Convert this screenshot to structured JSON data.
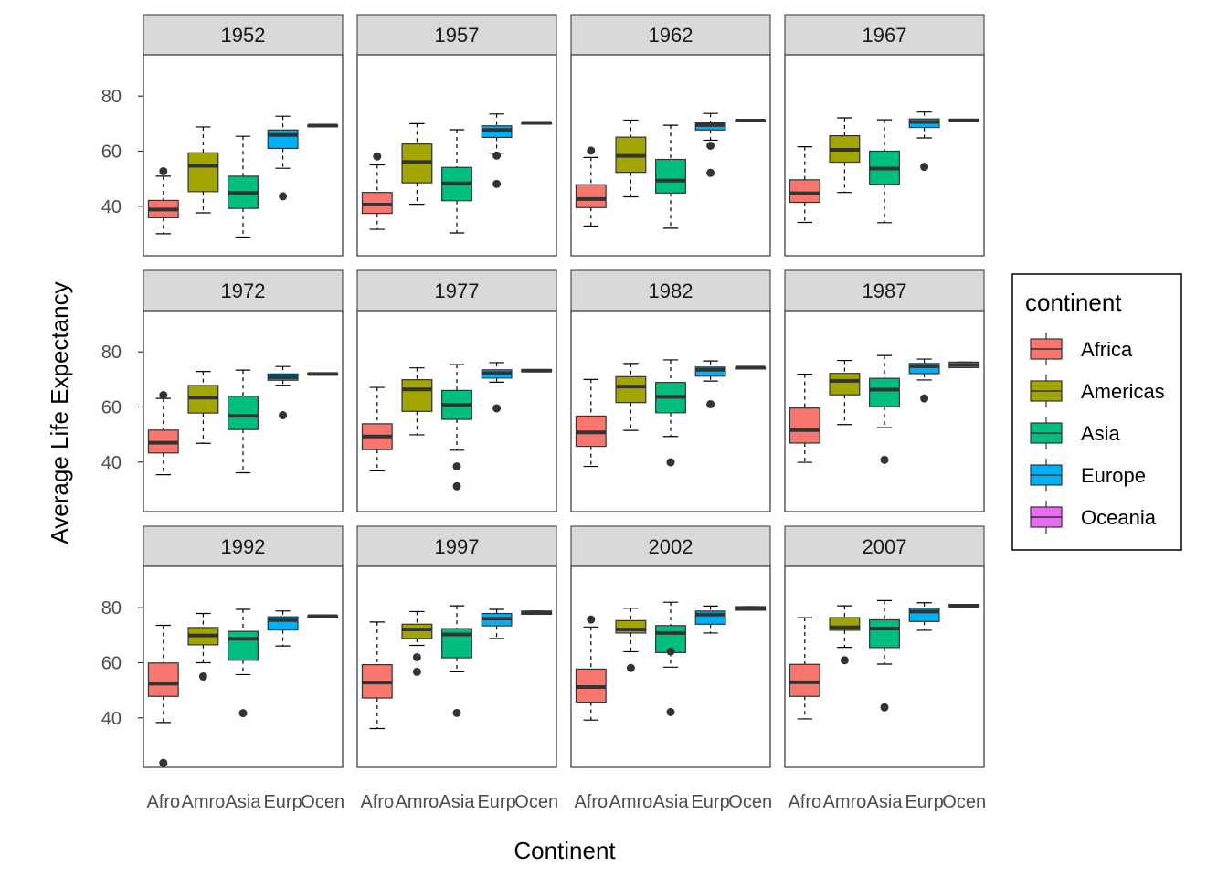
{
  "chart_data": {
    "type": "boxplot",
    "xlabel": "Continent",
    "ylabel": "Average Life Expectancy",
    "ylim": [
      22,
      95
    ],
    "yticks": [
      40,
      60,
      80
    ],
    "categories": [
      "Afro",
      "Amro",
      "Asia",
      "Eurp",
      "Ocen"
    ],
    "grid": false,
    "legend": {
      "title": "continent",
      "placement": "right",
      "entries": [
        {
          "name": "Africa",
          "color": "#F8766D"
        },
        {
          "name": "Americas",
          "color": "#A3A500"
        },
        {
          "name": "Asia",
          "color": "#00BF7D"
        },
        {
          "name": "Europe",
          "color": "#00B0F6"
        },
        {
          "name": "Oceania",
          "color": "#E76BF3"
        }
      ]
    },
    "panels": [
      {
        "year": "1952",
        "boxes": [
          {
            "min": 30.0,
            "q1": 35.8,
            "median": 38.8,
            "q3": 42.1,
            "max": 50.9,
            "outliers": [
              52.7
            ]
          },
          {
            "min": 37.6,
            "q1": 45.3,
            "median": 54.7,
            "q3": 59.4,
            "max": 68.8,
            "outliers": []
          },
          {
            "min": 28.8,
            "q1": 39.2,
            "median": 44.9,
            "q3": 50.9,
            "max": 65.4,
            "outliers": []
          },
          {
            "min": 53.8,
            "q1": 61.0,
            "median": 65.9,
            "q3": 67.7,
            "max": 72.7,
            "outliers": [
              43.6
            ]
          },
          {
            "min": 69.1,
            "q1": 69.1,
            "median": 69.3,
            "q3": 69.4,
            "max": 69.4,
            "outliers": []
          }
        ]
      },
      {
        "year": "1957",
        "boxes": [
          {
            "min": 31.6,
            "q1": 37.4,
            "median": 40.6,
            "q3": 45.0,
            "max": 55.0,
            "outliers": [
              58.1
            ]
          },
          {
            "min": 40.7,
            "q1": 48.5,
            "median": 56.1,
            "q3": 62.6,
            "max": 70.0,
            "outliers": []
          },
          {
            "min": 30.3,
            "q1": 42.0,
            "median": 48.3,
            "q3": 54.1,
            "max": 67.8,
            "outliers": []
          },
          {
            "min": 59.3,
            "q1": 65.0,
            "median": 67.7,
            "q3": 69.2,
            "max": 73.5,
            "outliers": [
              58.4,
              48.1
            ]
          },
          {
            "min": 70.3,
            "q1": 70.3,
            "median": 70.3,
            "q3": 70.3,
            "max": 70.3,
            "outliers": []
          }
        ]
      },
      {
        "year": "1962",
        "boxes": [
          {
            "min": 32.8,
            "q1": 39.5,
            "median": 42.6,
            "q3": 47.8,
            "max": 57.7,
            "outliers": [
              60.2
            ]
          },
          {
            "min": 43.4,
            "q1": 52.3,
            "median": 58.3,
            "q3": 65.1,
            "max": 71.3,
            "outliers": []
          },
          {
            "min": 32.0,
            "q1": 44.8,
            "median": 49.3,
            "q3": 57.0,
            "max": 69.4,
            "outliers": []
          },
          {
            "min": 64.0,
            "q1": 67.7,
            "median": 69.5,
            "q3": 70.3,
            "max": 73.7,
            "outliers": [
              62.0,
              52.1
            ]
          },
          {
            "min": 71.0,
            "q1": 71.0,
            "median": 71.1,
            "q3": 71.2,
            "max": 71.2,
            "outliers": []
          }
        ]
      },
      {
        "year": "1967",
        "boxes": [
          {
            "min": 34.1,
            "q1": 41.4,
            "median": 44.7,
            "q3": 49.6,
            "max": 61.6,
            "outliers": []
          },
          {
            "min": 45.0,
            "q1": 56.0,
            "median": 60.5,
            "q3": 65.6,
            "max": 72.1,
            "outliers": []
          },
          {
            "min": 34.0,
            "q1": 48.0,
            "median": 53.7,
            "q3": 60.0,
            "max": 71.4,
            "outliers": []
          },
          {
            "min": 64.8,
            "q1": 68.6,
            "median": 70.6,
            "q3": 71.7,
            "max": 74.2,
            "outliers": [
              54.3
            ]
          },
          {
            "min": 71.1,
            "q1": 71.1,
            "median": 71.2,
            "q3": 71.5,
            "max": 71.5,
            "outliers": []
          }
        ]
      },
      {
        "year": "1972",
        "boxes": [
          {
            "min": 35.4,
            "q1": 43.3,
            "median": 47.0,
            "q3": 51.6,
            "max": 63.1,
            "outliers": [
              64.3
            ]
          },
          {
            "min": 46.8,
            "q1": 57.8,
            "median": 63.4,
            "q3": 67.8,
            "max": 72.9,
            "outliers": []
          },
          {
            "min": 36.1,
            "q1": 51.8,
            "median": 56.8,
            "q3": 63.9,
            "max": 73.4,
            "outliers": []
          },
          {
            "min": 67.9,
            "q1": 69.7,
            "median": 70.8,
            "q3": 72.0,
            "max": 74.7,
            "outliers": [
              57.0
            ]
          },
          {
            "min": 71.9,
            "q1": 71.9,
            "median": 72.0,
            "q3": 72.3,
            "max": 72.3,
            "outliers": []
          }
        ]
      },
      {
        "year": "1977",
        "boxes": [
          {
            "min": 36.8,
            "q1": 44.5,
            "median": 49.3,
            "q3": 53.9,
            "max": 67.1,
            "outliers": []
          },
          {
            "min": 49.9,
            "q1": 58.4,
            "median": 66.4,
            "q3": 69.9,
            "max": 74.2,
            "outliers": []
          },
          {
            "min": 44.3,
            "q1": 55.5,
            "median": 60.8,
            "q3": 66.0,
            "max": 75.4,
            "outliers": [
              38.4,
              31.2
            ]
          },
          {
            "min": 69.0,
            "q1": 70.5,
            "median": 72.3,
            "q3": 73.5,
            "max": 76.1,
            "outliers": [
              59.5
            ]
          },
          {
            "min": 72.8,
            "q1": 72.8,
            "median": 73.2,
            "q3": 73.5,
            "max": 73.5,
            "outliers": []
          }
        ]
      },
      {
        "year": "1982",
        "boxes": [
          {
            "min": 38.4,
            "q1": 45.7,
            "median": 50.8,
            "q3": 56.7,
            "max": 70.0,
            "outliers": []
          },
          {
            "min": 51.5,
            "q1": 61.6,
            "median": 67.4,
            "q3": 71.0,
            "max": 75.8,
            "outliers": []
          },
          {
            "min": 49.3,
            "q1": 57.9,
            "median": 63.7,
            "q3": 68.9,
            "max": 77.1,
            "outliers": [
              39.9
            ]
          },
          {
            "min": 69.4,
            "q1": 71.2,
            "median": 73.5,
            "q3": 74.5,
            "max": 76.7,
            "outliers": [
              61.0
            ]
          },
          {
            "min": 74.3,
            "q1": 74.3,
            "median": 74.3,
            "q3": 74.3,
            "max": 74.3,
            "outliers": []
          }
        ]
      },
      {
        "year": "1987",
        "boxes": [
          {
            "min": 39.9,
            "q1": 46.9,
            "median": 51.6,
            "q3": 59.6,
            "max": 71.9,
            "outliers": []
          },
          {
            "min": 53.6,
            "q1": 64.4,
            "median": 69.5,
            "q3": 72.2,
            "max": 76.9,
            "outliers": []
          },
          {
            "min": 52.5,
            "q1": 60.1,
            "median": 66.3,
            "q3": 70.4,
            "max": 78.7,
            "outliers": [
              40.8
            ]
          },
          {
            "min": 69.8,
            "q1": 72.1,
            "median": 74.8,
            "q3": 75.8,
            "max": 77.4,
            "outliers": [
              63.1
            ]
          },
          {
            "min": 74.3,
            "q1": 74.3,
            "median": 75.3,
            "q3": 76.3,
            "max": 76.3,
            "outliers": []
          }
        ]
      },
      {
        "year": "1992",
        "boxes": [
          {
            "min": 38.3,
            "q1": 47.8,
            "median": 52.4,
            "q3": 59.9,
            "max": 73.6,
            "outliers": [
              23.6
            ]
          },
          {
            "min": 60.0,
            "q1": 66.5,
            "median": 69.9,
            "q3": 72.8,
            "max": 77.9,
            "outliers": [
              55.0
            ]
          },
          {
            "min": 55.7,
            "q1": 60.9,
            "median": 68.7,
            "q3": 71.4,
            "max": 79.4,
            "outliers": [
              41.7
            ]
          },
          {
            "min": 66.1,
            "q1": 71.9,
            "median": 75.5,
            "q3": 76.7,
            "max": 78.8,
            "outliers": []
          },
          {
            "min": 76.3,
            "q1": 76.3,
            "median": 76.9,
            "q3": 77.0,
            "max": 77.0,
            "outliers": []
          }
        ]
      },
      {
        "year": "1997",
        "boxes": [
          {
            "min": 36.1,
            "q1": 47.2,
            "median": 52.8,
            "q3": 59.3,
            "max": 74.8,
            "outliers": []
          },
          {
            "min": 66.3,
            "q1": 68.8,
            "median": 72.1,
            "q3": 74.0,
            "max": 78.6,
            "outliers": [
              62.0,
              56.7
            ]
          },
          {
            "min": 56.7,
            "q1": 61.8,
            "median": 70.3,
            "q3": 72.4,
            "max": 80.7,
            "outliers": [
              41.8
            ]
          },
          {
            "min": 68.8,
            "q1": 73.4,
            "median": 76.1,
            "q3": 77.9,
            "max": 79.4,
            "outliers": []
          },
          {
            "min": 77.6,
            "q1": 77.6,
            "median": 78.2,
            "q3": 78.8,
            "max": 78.8,
            "outliers": []
          }
        ]
      },
      {
        "year": "2002",
        "boxes": [
          {
            "min": 39.2,
            "q1": 45.7,
            "median": 51.2,
            "q3": 57.7,
            "max": 73.0,
            "outliers": [
              75.7
            ]
          },
          {
            "min": 64.0,
            "q1": 70.8,
            "median": 72.1,
            "q3": 75.3,
            "max": 79.8,
            "outliers": [
              58.1
            ]
          },
          {
            "min": 58.4,
            "q1": 63.7,
            "median": 70.8,
            "q3": 73.5,
            "max": 82.0,
            "outliers": [
              64.1,
              42.1
            ]
          },
          {
            "min": 70.8,
            "q1": 74.0,
            "median": 77.5,
            "q3": 78.8,
            "max": 80.6,
            "outliers": []
          },
          {
            "min": 79.1,
            "q1": 79.1,
            "median": 79.7,
            "q3": 80.4,
            "max": 80.4,
            "outliers": []
          }
        ]
      },
      {
        "year": "2007",
        "boxes": [
          {
            "min": 39.6,
            "q1": 47.8,
            "median": 52.9,
            "q3": 59.4,
            "max": 76.4,
            "outliers": []
          },
          {
            "min": 65.6,
            "q1": 71.8,
            "median": 72.9,
            "q3": 76.4,
            "max": 80.7,
            "outliers": [
              60.9
            ]
          },
          {
            "min": 59.5,
            "q1": 65.5,
            "median": 72.4,
            "q3": 75.6,
            "max": 82.6,
            "outliers": [
              43.8
            ]
          },
          {
            "min": 71.8,
            "q1": 75.0,
            "median": 78.6,
            "q3": 79.8,
            "max": 81.8,
            "outliers": []
          },
          {
            "min": 80.2,
            "q1": 80.2,
            "median": 80.7,
            "q3": 81.2,
            "max": 81.2,
            "outliers": []
          }
        ]
      }
    ]
  }
}
